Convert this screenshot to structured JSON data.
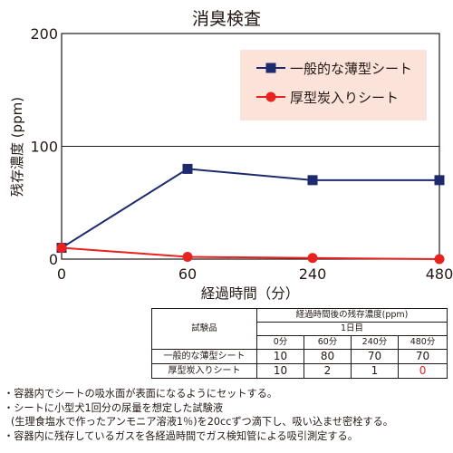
{
  "chart_data": {
    "type": "line",
    "title": "消臭検査",
    "xlabel": "経過時間（分）",
    "ylabel": "残存濃度 (ppm)",
    "x_ticks": [
      "0",
      "60",
      "240",
      "480"
    ],
    "y_ticks": [
      "0",
      "100",
      "200"
    ],
    "ylim": [
      0,
      200
    ],
    "grid": "horizontal",
    "legend_position": "top-right",
    "series": [
      {
        "name": "一般的な薄型シート",
        "values": [
          10,
          80,
          70,
          70
        ],
        "color": "#1d2a6e",
        "marker": "square"
      },
      {
        "name": "厚型炭入りシート",
        "values": [
          10,
          2,
          1,
          0
        ],
        "color": "#e8221f",
        "marker": "circle"
      }
    ]
  },
  "table": {
    "item_header": "試験品",
    "group_header": "経過時間後の残存濃度(ppm)",
    "day_header": "1日目",
    "columns": [
      "0分",
      "60分",
      "240分",
      "480分"
    ],
    "rows": [
      {
        "label": "一般的な薄型シート",
        "values": [
          "10",
          "80",
          "70",
          "70"
        ]
      },
      {
        "label": "厚型炭入りシート",
        "values": [
          "10",
          "2",
          "1",
          "0"
        ]
      }
    ]
  },
  "notes": [
    "・容器内でシートの吸水面が表面になるようにセットする。",
    "・シートに小型犬1回分の尿量を想定した試験液",
    "(生理食塩水で作ったアンモニア溶液1％)を20ccずつ滴下し、吸い込ませ密栓する。",
    "・容器内に残存しているガスを各経過時間でガス検知管による吸引測定する。"
  ]
}
